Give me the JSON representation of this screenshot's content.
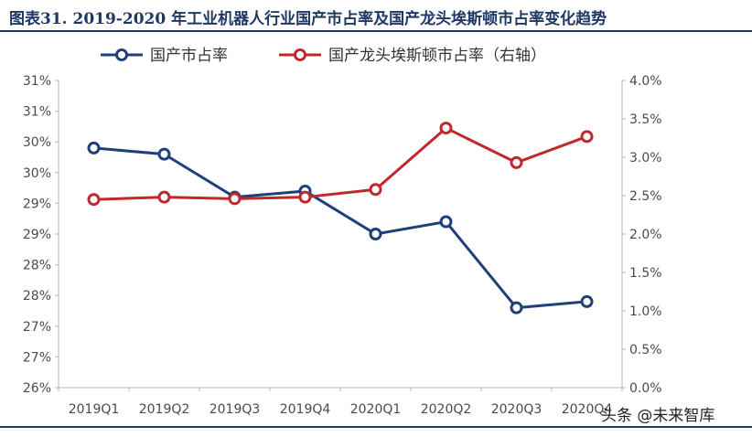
{
  "figure": {
    "title": "图表31. 2019-2020 年工业机器人行业国产市占率及国产龙头埃斯顿市占率变化趋势",
    "watermark": "头条 @未来智库"
  },
  "chart_data": {
    "type": "line",
    "categories": [
      "2019Q1",
      "2019Q2",
      "2019Q3",
      "2019Q4",
      "2020Q1",
      "2020Q2",
      "2020Q3",
      "2020Q4"
    ],
    "series": [
      {
        "name": "国产市占率",
        "axis": "left",
        "color": "#1f3f7a",
        "values": [
          29.9,
          29.8,
          29.1,
          29.2,
          28.5,
          28.7,
          27.3,
          27.4
        ]
      },
      {
        "name": "国产龙头埃斯顿市占率（右轴）",
        "axis": "right",
        "color": "#c0282d",
        "values": [
          0.0245,
          0.0248,
          0.0246,
          0.0248,
          0.0258,
          0.0338,
          0.0293,
          0.0327
        ]
      }
    ],
    "y_left": {
      "ylim": [
        26,
        31
      ],
      "tick_labels": [
        "26%",
        "27%",
        "27%",
        "28%",
        "28%",
        "29%",
        "29%",
        "30%",
        "30%",
        "31%",
        "31%"
      ]
    },
    "y_right": {
      "ylim": [
        0,
        0.04
      ],
      "tick_labels": [
        "0.0%",
        "0.5%",
        "1.0%",
        "1.5%",
        "2.0%",
        "2.5%",
        "3.0%",
        "3.5%",
        "4.0%"
      ]
    },
    "legend_position": "top",
    "grid": false
  }
}
